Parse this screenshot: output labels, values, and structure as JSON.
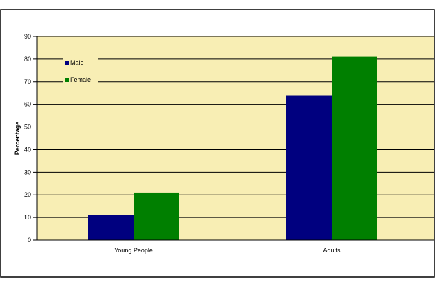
{
  "chart_data": {
    "type": "bar",
    "categories": [
      "Young People",
      "Adults"
    ],
    "series": [
      {
        "name": "Male",
        "values": [
          11,
          64
        ]
      },
      {
        "name": "Female",
        "values": [
          21,
          81
        ]
      }
    ],
    "title": "",
    "xlabel": "",
    "ylabel": "Percentage",
    "ylim": [
      0,
      90
    ],
    "yticks": [
      0,
      10,
      20,
      30,
      40,
      50,
      60,
      70,
      80,
      90
    ],
    "grid": true,
    "legend_position": "top-left",
    "colors": {
      "plot_background": "#f8eeb4",
      "gridline": "#000000",
      "series": [
        "#00007f",
        "#007f00"
      ]
    }
  }
}
